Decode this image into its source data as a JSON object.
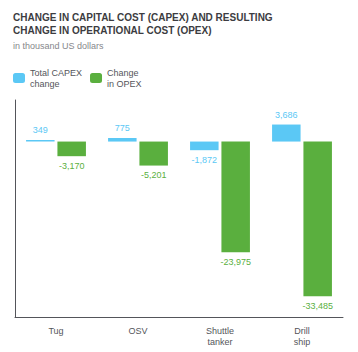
{
  "chart_data": {
    "type": "bar",
    "title": "CHANGE IN CAPITAL COST (CAPEX) AND RESULTING\nCHANGE IN OPERATIONAL COST (OPEX)",
    "subtitle": "in thousand US dollars",
    "categories": [
      "Tug",
      "OSV",
      "Shuttle\ntanker",
      "Drill\nship"
    ],
    "series": [
      {
        "name": "Total CAPEX\nchange",
        "color": "#5bc8f5",
        "values": [
          349,
          775,
          -1872,
          3686
        ],
        "value_labels": [
          "349",
          "775",
          "-1,872",
          "3,686"
        ]
      },
      {
        "name": "Change\nin OPEX",
        "color": "#5aaf3e",
        "values": [
          -3170,
          -5201,
          -23975,
          -33485
        ],
        "value_labels": [
          "-3,170",
          "-5,201",
          "-23,975",
          "-33,485"
        ]
      }
    ],
    "ylim": [
      -38000,
      9000
    ],
    "tick_labels": "x",
    "data_labels": true,
    "grid": false,
    "legend": "top"
  }
}
